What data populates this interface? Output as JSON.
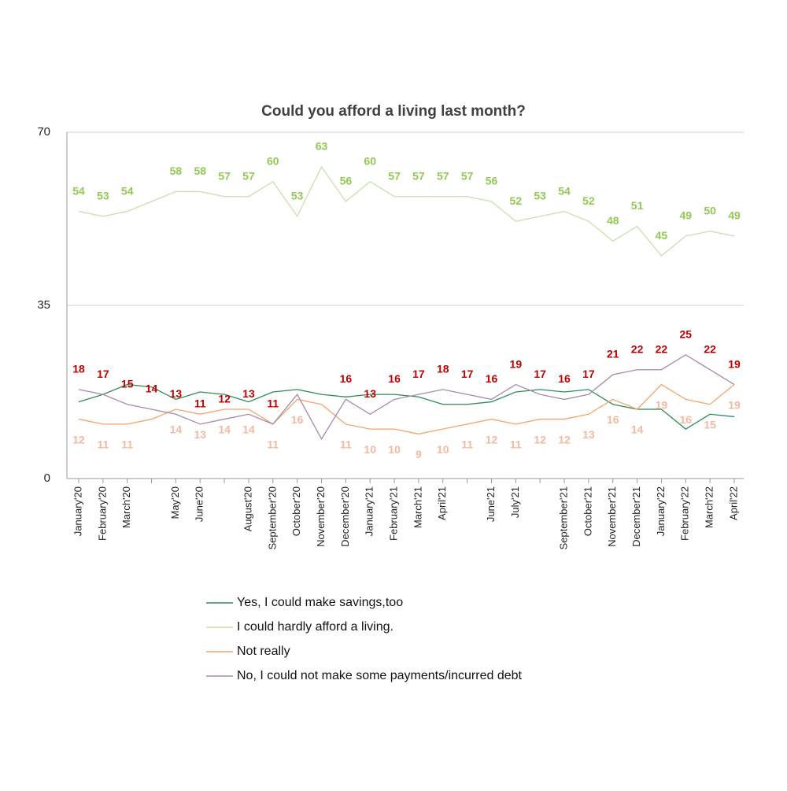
{
  "chart_data": {
    "type": "line",
    "title": "Could you afford a living last month?",
    "categories": [
      "January'20",
      "February'20",
      "March'20",
      null,
      "May'20",
      "June'20",
      null,
      "August'20",
      "September'20",
      "October'20",
      "November'20",
      "December'20",
      "January'21",
      "February'21",
      "March'21",
      "April'21",
      null,
      "June'21",
      "July'21",
      null,
      "September'21",
      "October'21",
      "November'21",
      "December'21",
      "January'22",
      "February'22",
      "March'22",
      "April'22"
    ],
    "ylim": [
      0,
      70
    ],
    "yticks": [
      0,
      35,
      70
    ],
    "grid": true,
    "legend": "bottom",
    "series": [
      {
        "name": "Yes, I could make savings,too",
        "color": "#2e8b57",
        "values": [
          15.5,
          17,
          19,
          18.5,
          16,
          17.5,
          17,
          15.5,
          17.5,
          18,
          17,
          16.5,
          17,
          17,
          16.5,
          15,
          15,
          15.5,
          17.5,
          18,
          17.5,
          18,
          15,
          14,
          14,
          10,
          13,
          12.5
        ]
      },
      {
        "name": "I could hardly afford a living.",
        "color": "#c9dfae",
        "label_color": "#92c952",
        "label_position": "above",
        "values": [
          54,
          53,
          54,
          56,
          58,
          58,
          57,
          57,
          60,
          53,
          63,
          56,
          60,
          57,
          57,
          57,
          57,
          56,
          52,
          53,
          54,
          52,
          48,
          51,
          45,
          49,
          50,
          49
        ],
        "value_labels": [
          "54",
          "53",
          "54",
          null,
          "58",
          "58",
          "57",
          "57",
          "60",
          "53",
          "63",
          "56",
          "60",
          "57",
          "57",
          "57",
          "57",
          "56",
          "52",
          "53",
          "54",
          "52",
          "48",
          "51",
          "45",
          "49",
          "50",
          "49"
        ]
      },
      {
        "name": "Not really",
        "color": "#f4a46c",
        "label_color": "#f5b8a0",
        "label_position": "below",
        "values": [
          12,
          11,
          11,
          12,
          14,
          13,
          14,
          14,
          11,
          16,
          15,
          11,
          10,
          10,
          9,
          10,
          11,
          12,
          11,
          12,
          12,
          13,
          16,
          14,
          19,
          16,
          15,
          19
        ],
        "value_labels": [
          "12",
          "11",
          "11",
          null,
          "14",
          "13",
          "14",
          "14",
          "11",
          "16",
          null,
          "11",
          "10",
          "10",
          "9",
          "10",
          "11",
          "12",
          "11",
          "12",
          "12",
          "13",
          "16",
          "14",
          "19",
          "16",
          "15",
          "19"
        ]
      },
      {
        "name": "No, I could not make some payments/incurred debt",
        "color": "#a68aa8",
        "label_color": "#c00000",
        "label_position": "above",
        "values": [
          18,
          17,
          15,
          14,
          13,
          11,
          12,
          13,
          11,
          17,
          8,
          16,
          13,
          16,
          17,
          18,
          17,
          16,
          19,
          17,
          16,
          17,
          21,
          22,
          22,
          25,
          22,
          19
        ],
        "value_labels": [
          "18",
          "17",
          "15",
          "14",
          "13",
          "11",
          "12",
          "13",
          "11",
          null,
          null,
          "16",
          "13",
          "16",
          "17",
          "18",
          "17",
          "16",
          "19",
          "17",
          "16",
          "17",
          "21",
          "22",
          "22",
          "25",
          "22",
          "19"
        ]
      }
    ]
  }
}
